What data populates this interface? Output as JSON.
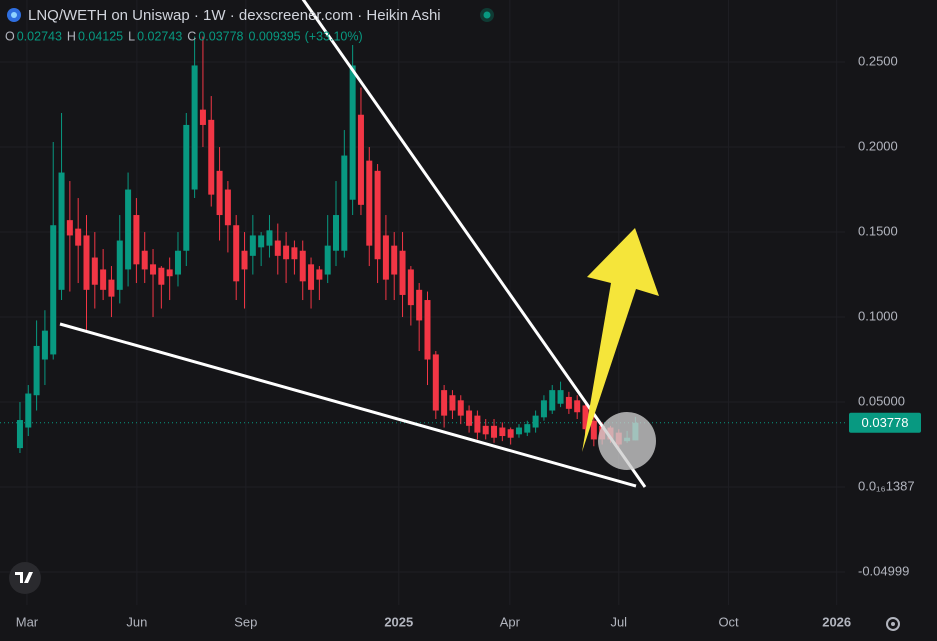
{
  "header": {
    "title": "LNQ/WETH on Uniswap · 1W · dexscreener.com · Heikin Ashi",
    "ohlc": [
      [
        "O",
        "0.02743"
      ],
      [
        "H",
        "0.04125"
      ],
      [
        "L",
        "0.02743"
      ],
      [
        "C",
        "0.03778"
      ]
    ],
    "change": "0.009395",
    "change_pct": "(+33.10%)"
  },
  "chart_data": {
    "type": "candlestick",
    "up_color": "#089981",
    "down_color": "#f23645",
    "grid": true,
    "categories": [
      null,
      null,
      null,
      null,
      null,
      null,
      null,
      null,
      null,
      null,
      null,
      null,
      null,
      null,
      null,
      null,
      null,
      null,
      null,
      null,
      null,
      null,
      null,
      null,
      null,
      null,
      null,
      null,
      null,
      null,
      null,
      null,
      null,
      null,
      null,
      null,
      null,
      null,
      null,
      null,
      null,
      null,
      null,
      null,
      null,
      null,
      null,
      null,
      null,
      null,
      null,
      null,
      null,
      null,
      null,
      null,
      null,
      null,
      null,
      null,
      null,
      null,
      null,
      null,
      null,
      null,
      null,
      null,
      null,
      null,
      null,
      null,
      null,
      null,
      null
    ],
    "open": [
      0.0229,
      0.035,
      0.054,
      0.075,
      0.078,
      0.116,
      0.157,
      0.152,
      0.148,
      0.135,
      0.128,
      0.122,
      0.116,
      0.128,
      0.16,
      0.139,
      0.131,
      0.129,
      0.128,
      0.125,
      0.139,
      0.175,
      0.222,
      0.216,
      0.186,
      0.175,
      0.154,
      0.139,
      0.136,
      0.141,
      0.142,
      0.145,
      0.142,
      0.141,
      0.139,
      0.131,
      0.128,
      0.125,
      0.139,
      0.139,
      0.169,
      0.219,
      0.192,
      0.186,
      0.148,
      0.142,
      0.139,
      0.128,
      0.116,
      0.11,
      0.078,
      0.057,
      0.054,
      0.051,
      0.045,
      0.042,
      0.036,
      0.036,
      0.035,
      0.034,
      0.031,
      0.032,
      0.035,
      0.041,
      0.045,
      0.049,
      0.053,
      0.051,
      0.048,
      0.039,
      0.036,
      0.035,
      0.032,
      0.027,
      0.02743
    ],
    "high": [
      0.05,
      0.06,
      0.098,
      0.104,
      0.203,
      0.22,
      0.18,
      0.17,
      0.16,
      0.15,
      0.14,
      0.13,
      0.16,
      0.185,
      0.17,
      0.15,
      0.14,
      0.13,
      0.135,
      0.15,
      0.22,
      0.265,
      0.265,
      0.23,
      0.2,
      0.18,
      0.16,
      0.15,
      0.16,
      0.15,
      0.16,
      0.155,
      0.15,
      0.145,
      0.145,
      0.135,
      0.13,
      0.16,
      0.18,
      0.21,
      0.26,
      0.235,
      0.2,
      0.19,
      0.16,
      0.15,
      0.15,
      0.13,
      0.12,
      0.115,
      0.08,
      0.06,
      0.057,
      0.054,
      0.048,
      0.045,
      0.04,
      0.04,
      0.038,
      0.035,
      0.037,
      0.039,
      0.045,
      0.054,
      0.06,
      0.062,
      0.056,
      0.054,
      0.05,
      0.045,
      0.038,
      0.036,
      0.034,
      0.033,
      0.04125
    ],
    "low": [
      0.02,
      0.03,
      0.045,
      0.06,
      0.075,
      0.11,
      0.115,
      0.12,
      0.092,
      0.105,
      0.11,
      0.1,
      0.108,
      0.118,
      0.12,
      0.12,
      0.1,
      0.105,
      0.11,
      0.118,
      0.13,
      0.17,
      0.2,
      0.165,
      0.145,
      0.138,
      0.11,
      0.105,
      0.125,
      0.13,
      0.135,
      0.125,
      0.12,
      0.125,
      0.11,
      0.105,
      0.11,
      0.12,
      0.13,
      0.135,
      0.16,
      0.16,
      0.13,
      0.12,
      0.11,
      0.11,
      0.1,
      0.095,
      0.08,
      0.06,
      0.04,
      0.035,
      0.04,
      0.037,
      0.032,
      0.028,
      0.028,
      0.026,
      0.027,
      0.025,
      0.029,
      0.03,
      0.032,
      0.039,
      0.043,
      0.047,
      0.043,
      0.04,
      0.03,
      0.024,
      0.025,
      0.026,
      0.023,
      0.026,
      0.02743
    ],
    "close": [
      0.0394,
      0.055,
      0.083,
      0.092,
      0.154,
      0.185,
      0.148,
      0.142,
      0.116,
      0.119,
      0.116,
      0.112,
      0.145,
      0.175,
      0.131,
      0.128,
      0.125,
      0.119,
      0.124,
      0.139,
      0.213,
      0.248,
      0.213,
      0.172,
      0.16,
      0.154,
      0.121,
      0.128,
      0.148,
      0.148,
      0.151,
      0.136,
      0.134,
      0.134,
      0.121,
      0.116,
      0.122,
      0.142,
      0.16,
      0.195,
      0.248,
      0.166,
      0.142,
      0.134,
      0.122,
      0.125,
      0.113,
      0.107,
      0.098,
      0.075,
      0.045,
      0.042,
      0.045,
      0.042,
      0.036,
      0.032,
      0.031,
      0.029,
      0.03,
      0.029,
      0.035,
      0.037,
      0.042,
      0.051,
      0.057,
      0.057,
      0.046,
      0.044,
      0.034,
      0.028,
      0.028,
      0.028,
      0.025,
      0.029,
      0.03778
    ],
    "last_price": {
      "value": 0.03778,
      "label": "0.03778"
    },
    "xlim": [
      -2.4,
      99.2
    ],
    "xticks": [
      {
        "value": 0.84,
        "label": "Mar"
      },
      {
        "value": 14.06,
        "label": "Jun"
      },
      {
        "value": 27.16,
        "label": "Sep"
      },
      {
        "value": 45.55,
        "label": "2025",
        "bold": true
      },
      {
        "value": 58.9,
        "label": "Apr"
      },
      {
        "value": 72,
        "label": "Jul"
      },
      {
        "value": 85.2,
        "label": "Oct"
      },
      {
        "value": 98.2,
        "label": "2026",
        "bold": true
      }
    ],
    "ylim": [
      -0.0694,
      0.2865
    ],
    "yticks": [
      {
        "value": 0.25,
        "label": "0.2500"
      },
      {
        "value": 0.2,
        "label": "0.2000"
      },
      {
        "value": 0.15,
        "label": "0.1500"
      },
      {
        "value": 0.1,
        "label": "0.1000"
      },
      {
        "value": 0.05,
        "label": "0.05000"
      },
      {
        "value": 1.387e-17,
        "label": "0.0₁₆1387"
      },
      -0.04999
    ]
  }
}
